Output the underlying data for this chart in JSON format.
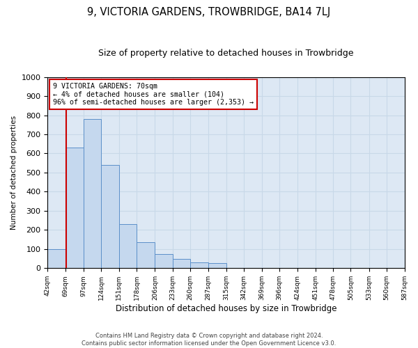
{
  "title": "9, VICTORIA GARDENS, TROWBRIDGE, BA14 7LJ",
  "subtitle": "Size of property relative to detached houses in Trowbridge",
  "xlabel": "Distribution of detached houses by size in Trowbridge",
  "ylabel": "Number of detached properties",
  "footer_line1": "Contains HM Land Registry data © Crown copyright and database right 2024.",
  "footer_line2": "Contains public sector information licensed under the Open Government Licence v3.0.",
  "annotation_line1": "9 VICTORIA GARDENS: 70sqm",
  "annotation_line2": "← 4% of detached houses are smaller (104)",
  "annotation_line3": "96% of semi-detached houses are larger (2,353) →",
  "bins": [
    42,
    69,
    97,
    124,
    151,
    178,
    206,
    233,
    260,
    287,
    315,
    342,
    369,
    396,
    424,
    451,
    478,
    505,
    533,
    560,
    587
  ],
  "counts": [
    100,
    630,
    780,
    540,
    230,
    135,
    75,
    50,
    30,
    25,
    0,
    0,
    0,
    0,
    0,
    0,
    0,
    0,
    0,
    0
  ],
  "bar_color": "#c5d8ee",
  "bar_edge_color": "#5b8fc9",
  "vline_color": "#cc0000",
  "vline_x": 70,
  "annotation_box_color": "#cc0000",
  "grid_color": "#c8d8e8",
  "background_color": "#dde8f4",
  "ylim": [
    0,
    1000
  ],
  "yticks": [
    0,
    100,
    200,
    300,
    400,
    500,
    600,
    700,
    800,
    900,
    1000
  ]
}
